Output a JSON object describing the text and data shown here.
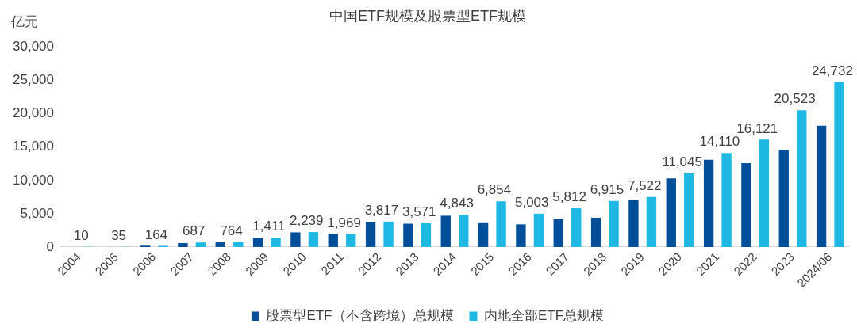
{
  "chart_data": {
    "type": "bar",
    "title": "中国ETF规模及股票型ETF规模",
    "ylabel": "亿元",
    "categories": [
      "2004",
      "2005",
      "2006",
      "2007",
      "2008",
      "2009",
      "2010",
      "2011",
      "2012",
      "2013",
      "2014",
      "2015",
      "2016",
      "2017",
      "2018",
      "2019",
      "2020",
      "2021",
      "2022",
      "2023",
      "2024/06"
    ],
    "series": [
      {
        "name": "股票型ETF（不含跨境）总规模",
        "color": "#004f98",
        "values": [
          null,
          null,
          200,
          600,
          700,
          1400,
          2200,
          1900,
          3800,
          3500,
          4700,
          3700,
          3400,
          4200,
          4400,
          7100,
          10300,
          13100,
          12600,
          14600,
          18200
        ]
      },
      {
        "name": "内地全部ETF总规模",
        "color": "#1eb8e3",
        "values": [
          10,
          35,
          164,
          687,
          764,
          1411,
          2239,
          1969,
          3817,
          3571,
          4843,
          6854,
          5003,
          5812,
          6915,
          7522,
          11045,
          14110,
          16121,
          20523,
          24732
        ],
        "value_labels": [
          "10",
          "35",
          "164",
          "687",
          "764",
          "1,411",
          "2,239",
          "1,969",
          "3,817",
          "3,571",
          "4,843",
          "6,854",
          "5,003",
          "5,812",
          "6,915",
          "7,522",
          "11,045",
          "14,110",
          "16,121",
          "20,523",
          "24,732"
        ]
      }
    ],
    "ylim": [
      0,
      30000
    ],
    "yticks": [
      {
        "value": 0,
        "label": "0"
      },
      {
        "value": 5000,
        "label": "5,000"
      },
      {
        "value": 10000,
        "label": "10,000"
      },
      {
        "value": 15000,
        "label": "15,000"
      },
      {
        "value": 20000,
        "label": "20,000"
      },
      {
        "value": 25000,
        "label": "25,000"
      },
      {
        "value": 30000,
        "label": "30,000"
      }
    ],
    "grid": false,
    "legend": "bottom"
  }
}
